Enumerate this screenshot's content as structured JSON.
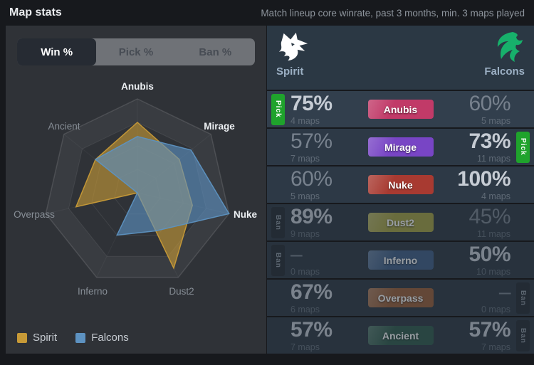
{
  "header": {
    "title": "Map stats",
    "subtitle": "Match lineup core winrate, past 3 months, min. 3 maps played"
  },
  "tabs": [
    {
      "label": "Win %",
      "active": true
    },
    {
      "label": "Pick %",
      "active": false
    },
    {
      "label": "Ban %",
      "active": false
    }
  ],
  "teams": {
    "left": {
      "name": "Spirit",
      "logo_color": "#ffffff"
    },
    "right": {
      "name": "Falcons",
      "logo_color": "#17b06b"
    }
  },
  "chart_data": {
    "type": "radar",
    "title": "Map win rate radar",
    "categories": [
      "Anubis",
      "Mirage",
      "Nuke",
      "Dust2",
      "Inferno",
      "Overpass",
      "Ancient"
    ],
    "category_emphasis": [
      true,
      true,
      true,
      false,
      false,
      false,
      false
    ],
    "series": [
      {
        "name": "Spirit",
        "color": "#c79a37",
        "values": [
          75,
          57,
          60,
          89,
          0,
          67,
          57
        ]
      },
      {
        "name": "Falcons",
        "color": "#5d92c1",
        "values": [
          60,
          73,
          100,
          45,
          50,
          0,
          57
        ]
      }
    ],
    "max": 100,
    "rings": [
      25,
      50,
      75,
      100
    ],
    "grid": true,
    "legend_position": "bottom-left"
  },
  "legend": [
    {
      "name": "Spirit",
      "color": "#c79a37"
    },
    {
      "name": "Falcons",
      "color": "#5d92c1"
    }
  ],
  "table": {
    "rows": [
      {
        "map": "Anubis",
        "map_color": "#c13a68",
        "tone": "bright",
        "left": {
          "value": "75%",
          "maps": "4 maps",
          "highlight": true,
          "badge": "Pick"
        },
        "right": {
          "value": "60%",
          "maps": "5 maps",
          "highlight": false,
          "badge": null
        }
      },
      {
        "map": "Mirage",
        "map_color": "#7845c5",
        "tone": "normal",
        "left": {
          "value": "57%",
          "maps": "7 maps",
          "highlight": false,
          "badge": null
        },
        "right": {
          "value": "73%",
          "maps": "11 maps",
          "highlight": true,
          "badge": "Pick"
        }
      },
      {
        "map": "Nuke",
        "map_color": "#a83a31",
        "tone": "normal",
        "left": {
          "value": "60%",
          "maps": "5 maps",
          "highlight": false,
          "badge": null
        },
        "right": {
          "value": "100%",
          "maps": "4 maps",
          "highlight": true,
          "badge": null
        }
      },
      {
        "map": "Dust2",
        "map_color": "#a6a23e",
        "tone": "dim",
        "left": {
          "value": "89%",
          "maps": "9 maps",
          "highlight": true,
          "badge": "Ban"
        },
        "right": {
          "value": "45%",
          "maps": "11 maps",
          "highlight": false,
          "badge": null
        }
      },
      {
        "map": "Inferno",
        "map_color": "#3c5c85",
        "tone": "dim",
        "left": {
          "value": "–",
          "maps": "0 maps",
          "highlight": false,
          "badge": "Ban"
        },
        "right": {
          "value": "50%",
          "maps": "10 maps",
          "highlight": true,
          "badge": null
        }
      },
      {
        "map": "Overpass",
        "map_color": "#995c33",
        "tone": "dim",
        "left": {
          "value": "67%",
          "maps": "6 maps",
          "highlight": true,
          "badge": null
        },
        "right": {
          "value": "–",
          "maps": "0 maps",
          "highlight": false,
          "badge": "Ban"
        }
      },
      {
        "map": "Ancient",
        "map_color": "#2b5847",
        "tone": "dim",
        "left": {
          "value": "57%",
          "maps": "7 maps",
          "highlight": true,
          "badge": null
        },
        "right": {
          "value": "57%",
          "maps": "7 maps",
          "highlight": true,
          "badge": "Ban"
        }
      }
    ]
  },
  "badges": {
    "pick_label": "Pick",
    "ban_label": "Ban"
  }
}
